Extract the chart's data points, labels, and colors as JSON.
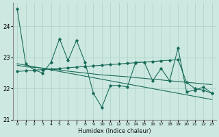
{
  "xlabel": "Humidex (Indice chaleur)",
  "xlim": [
    -0.5,
    23.5
  ],
  "ylim": [
    21.0,
    24.75
  ],
  "yticks": [
    21,
    22,
    23,
    24
  ],
  "xticks": [
    0,
    1,
    2,
    3,
    4,
    5,
    6,
    7,
    8,
    9,
    10,
    11,
    12,
    13,
    14,
    15,
    16,
    17,
    18,
    19,
    20,
    21,
    22,
    23
  ],
  "bg_color": "#cce8e0",
  "line_color": "#1a6b5a",
  "grid_color": "#aad0c8",
  "jagged_line": [
    24.55,
    22.8,
    22.6,
    22.5,
    22.85,
    23.6,
    22.9,
    23.55,
    22.85,
    21.85,
    21.4,
    22.1,
    22.1,
    22.05,
    22.85,
    22.85,
    22.25,
    22.65,
    22.25,
    23.3,
    21.9,
    21.95,
    22.05,
    21.85
  ],
  "trend1": [
    22.8,
    22.75,
    22.7,
    22.65,
    22.6,
    22.55,
    22.5,
    22.45,
    22.4,
    22.35,
    22.3,
    22.25,
    22.2,
    22.15,
    22.1,
    22.05,
    22.0,
    21.95,
    21.9,
    21.85,
    21.8,
    21.75,
    21.7,
    21.65
  ],
  "trend2": [
    22.75,
    22.7,
    22.68,
    22.66,
    22.62,
    22.6,
    22.56,
    22.53,
    22.5,
    22.47,
    22.44,
    22.42,
    22.4,
    22.38,
    22.35,
    22.33,
    22.3,
    22.28,
    22.25,
    22.23,
    22.2,
    22.18,
    22.15,
    22.13
  ],
  "trend3_rise": [
    22.55,
    22.57,
    22.59,
    22.61,
    22.63,
    22.65,
    22.67,
    22.69,
    22.71,
    22.73,
    22.75,
    22.77,
    22.79,
    22.81,
    22.83,
    22.85,
    22.87,
    22.89,
    22.91,
    22.93,
    22.2,
    22.0,
    21.95,
    21.85
  ]
}
